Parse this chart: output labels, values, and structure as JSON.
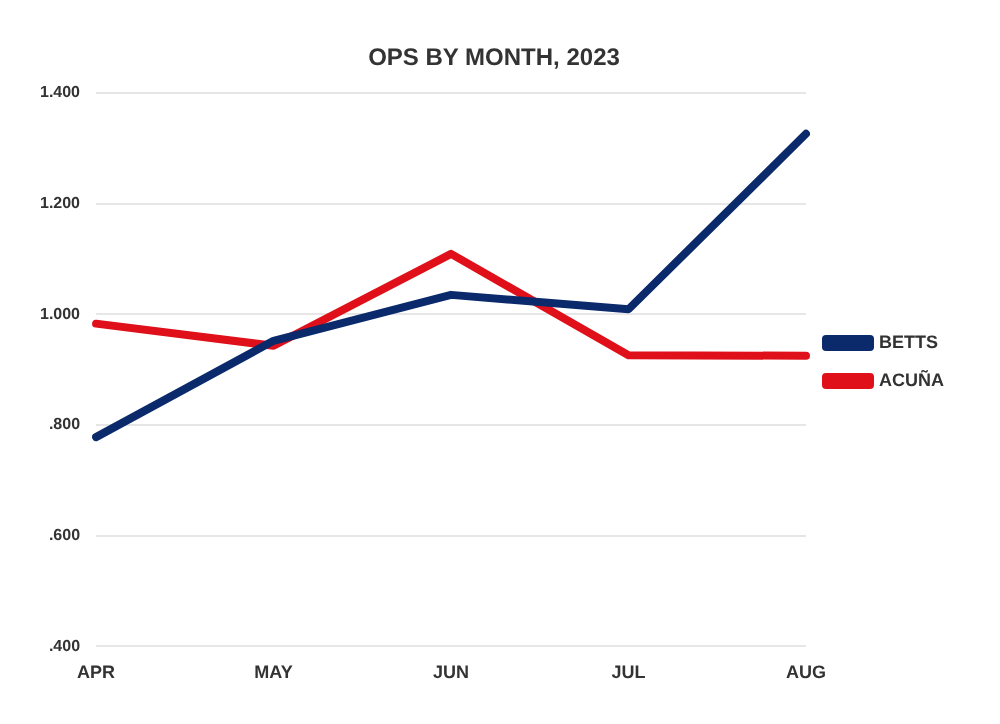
{
  "chart_data": {
    "type": "line",
    "title": "OPS BY MONTH, 2023",
    "categories": [
      "APR",
      "MAY",
      "JUN",
      "JUL",
      "AUG"
    ],
    "series": [
      {
        "name": "BETTS",
        "color": "#0a2a6b",
        "values": [
          0.778,
          0.952,
          1.035,
          1.009,
          1.326
        ]
      },
      {
        "name": "ACUÑA",
        "color": "#e0101a",
        "values": [
          0.983,
          0.943,
          1.109,
          0.926,
          0.925
        ]
      }
    ],
    "ylim": [
      0.4,
      1.4
    ],
    "yticks": [
      {
        "value": 0.4,
        "label": ".400"
      },
      {
        "value": 0.6,
        "label": ".600"
      },
      {
        "value": 0.8,
        "label": ".800"
      },
      {
        "value": 1.0,
        "label": "1.000"
      },
      {
        "value": 1.2,
        "label": "1.200"
      },
      {
        "value": 1.4,
        "label": "1.400"
      }
    ],
    "grid": "y",
    "legend": "right",
    "marker": "none",
    "line_style": "solid"
  }
}
